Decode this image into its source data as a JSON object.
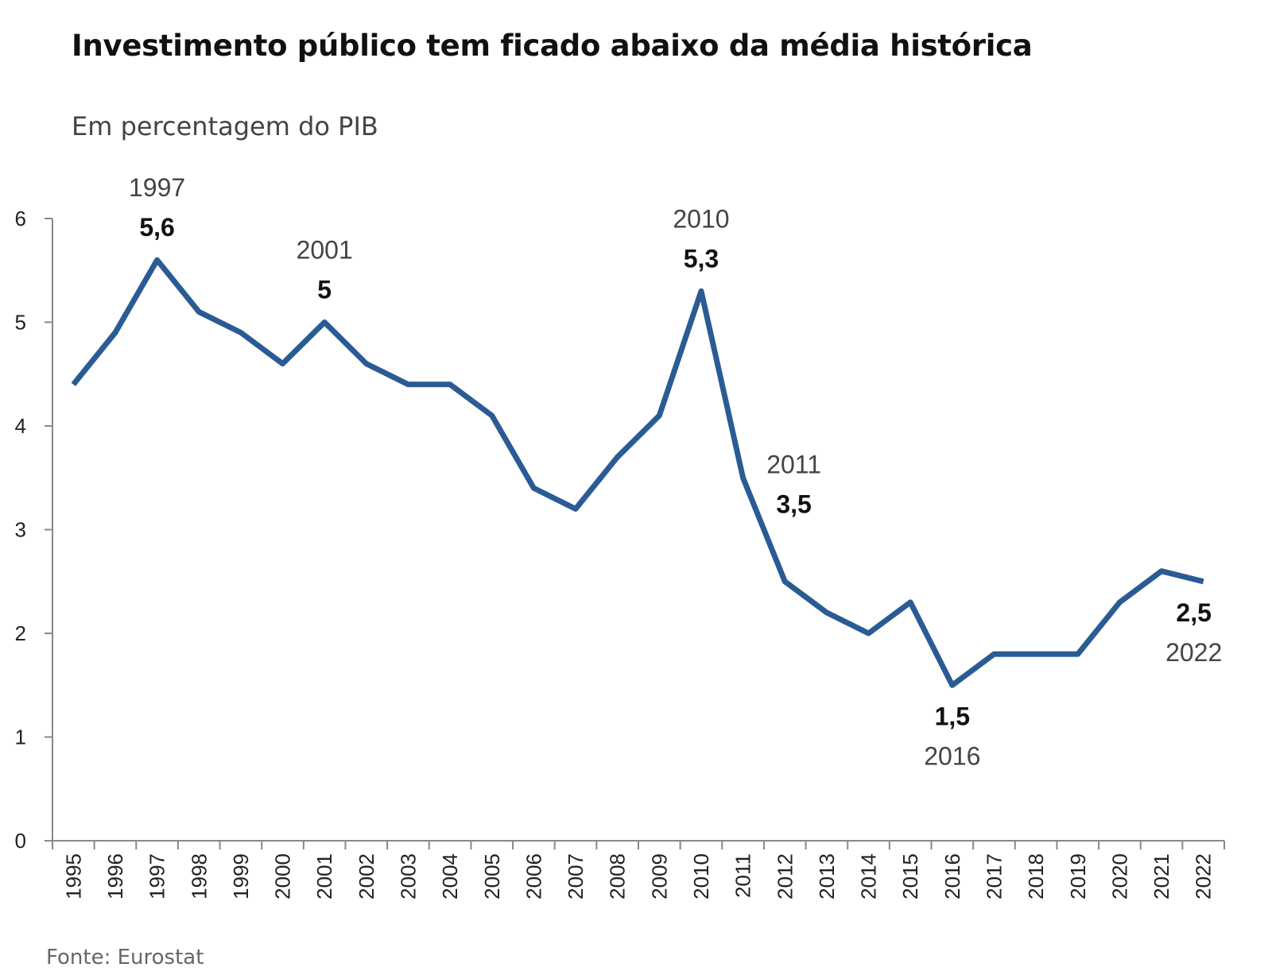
{
  "header": {
    "title": "Investimento público tem ficado abaixo da média histórica",
    "subtitle": "Em percentagem do PIB"
  },
  "footer": {
    "source": "Fonte: Eurostat"
  },
  "colors": {
    "line": "#2a5b95",
    "axis": "#888888"
  },
  "chart_data": {
    "type": "line",
    "title": "Investimento público tem ficado abaixo da média histórica",
    "subtitle": "Em percentagem do PIB",
    "xlabel": "",
    "ylabel": "",
    "ylim": [
      0,
      6
    ],
    "yticks": [
      "0",
      "1",
      "2",
      "3",
      "4",
      "5",
      "6"
    ],
    "grid": false,
    "legend": "none",
    "x": [
      "1995",
      "1996",
      "1997",
      "1998",
      "1999",
      "2000",
      "2001",
      "2002",
      "2003",
      "2004",
      "2005",
      "2006",
      "2007",
      "2008",
      "2009",
      "2010",
      "2011",
      "2012",
      "2013",
      "2014",
      "2015",
      "2016",
      "2017",
      "2018",
      "2019",
      "2020",
      "2021",
      "2022"
    ],
    "series": [
      {
        "values": [
          4.4,
          4.9,
          5.6,
          5.1,
          4.9,
          4.6,
          5.0,
          4.6,
          4.4,
          4.4,
          4.1,
          3.4,
          3.2,
          3.7,
          4.1,
          5.3,
          3.5,
          2.5,
          2.2,
          2.0,
          2.3,
          1.5,
          1.8,
          1.8,
          1.8,
          2.3,
          2.6,
          2.5
        ]
      }
    ],
    "annotations": [
      {
        "year": "1997",
        "value": "5,6",
        "position": "above",
        "index": 2
      },
      {
        "year": "2001",
        "value": "5",
        "position": "above",
        "index": 6
      },
      {
        "year": "2010",
        "value": "5,3",
        "position": "above",
        "index": 15
      },
      {
        "year": "2011",
        "value": "3,5",
        "position": "right",
        "index": 16
      },
      {
        "year": "2016",
        "value": "1,5",
        "position": "below",
        "index": 21
      },
      {
        "year": "2022",
        "value": "2,5",
        "position": "below",
        "index": 27
      }
    ]
  }
}
